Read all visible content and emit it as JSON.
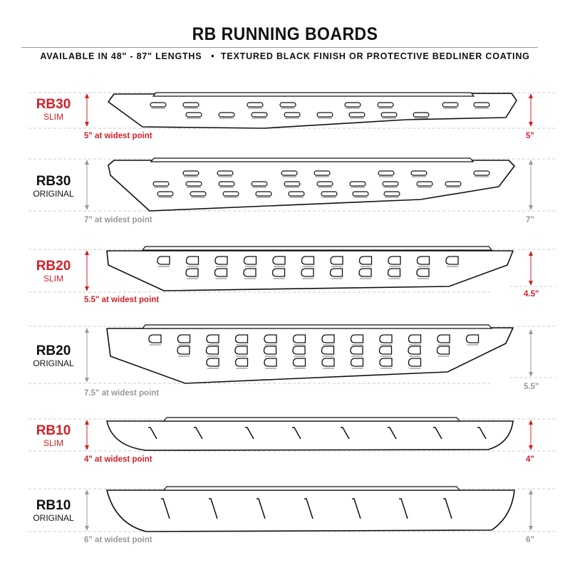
{
  "header": {
    "title": "RB RUNNING BOARDS",
    "subtitle": "AVAILABLE IN 48\" - 87\" LENGTHS   •  TEXTURED BLACK FINISH OR PROTECTIVE BEDLINER COATING"
  },
  "colors": {
    "accent": "#d32029",
    "neutral": "#999999",
    "outline": "#111111"
  },
  "boards": [
    {
      "name": "RB30",
      "variant": "SLIM",
      "widest": "5\" at widest point",
      "right_dim": "5\"",
      "highlight": true
    },
    {
      "name": "RB30",
      "variant": "ORIGINAL",
      "widest": "7\" at widest point",
      "right_dim": "7\"",
      "highlight": false
    },
    {
      "name": "RB20",
      "variant": "SLIM",
      "widest": "5.5\" at widest point",
      "right_dim": "4.5\"",
      "highlight": true
    },
    {
      "name": "RB20",
      "variant": "ORIGINAL",
      "widest": "7.5\" at widest point",
      "right_dim": "5.5\"",
      "highlight": false
    },
    {
      "name": "RB10",
      "variant": "SLIM",
      "widest": "4\" at widest point",
      "right_dim": "4\"",
      "highlight": true
    },
    {
      "name": "RB10",
      "variant": "ORIGINAL",
      "widest": "6\" at widest point",
      "right_dim": "6\"",
      "highlight": false
    }
  ]
}
